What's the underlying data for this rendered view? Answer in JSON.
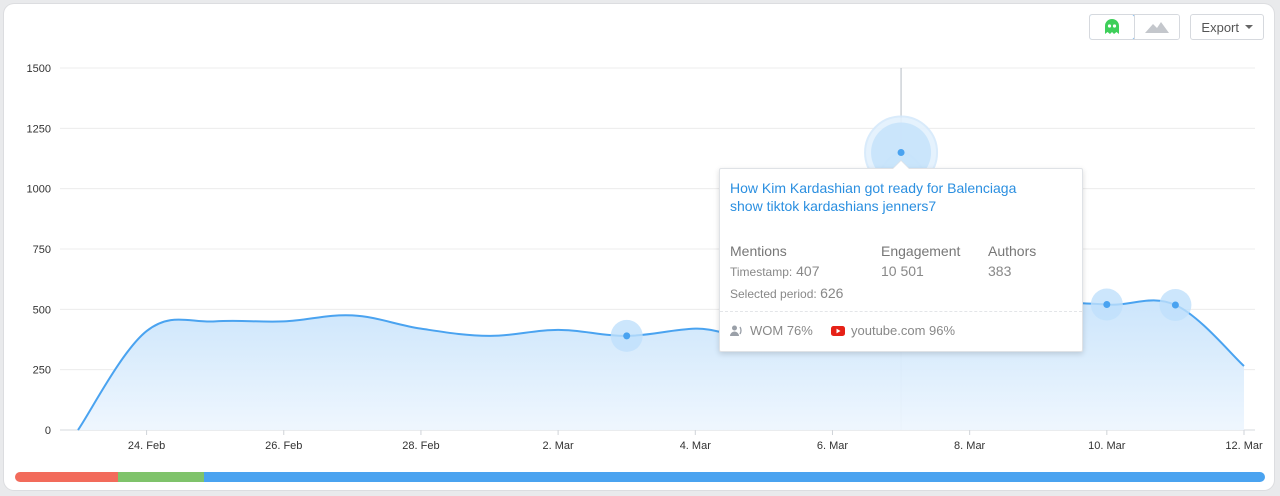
{
  "toolbar": {
    "toggle_left_icon": "ghost-icon",
    "toggle_right_icon": "mountain-icon",
    "export_label": "Export"
  },
  "colors": {
    "line": "#4aa3f0",
    "fill_top": "#9fcff8",
    "fill_bottom": "#eef6fe",
    "grid": "#ececec"
  },
  "chart_data": {
    "type": "area",
    "y_ticks": [
      "0",
      "250",
      "500",
      "750",
      "1000",
      "1250",
      "1500"
    ],
    "ylim": [
      0,
      1500
    ],
    "x_ticks": [
      "24. Feb",
      "26. Feb",
      "28. Feb",
      "2. Mar",
      "4. Mar",
      "6. Mar",
      "8. Mar",
      "10. Mar",
      "12. Mar"
    ],
    "x": [
      "23. Feb",
      "24. Feb",
      "25. Feb",
      "26. Feb",
      "27. Feb",
      "28. Feb",
      "1. Mar",
      "2. Mar",
      "3. Mar",
      "4. Mar",
      "5. Mar",
      "6. Mar",
      "7. Mar",
      "8. Mar",
      "9. Mar",
      "10. Mar",
      "11. Mar",
      "12. Mar"
    ],
    "values": [
      0,
      410,
      450,
      450,
      475,
      420,
      390,
      415,
      390,
      420,
      410,
      700,
      1150,
      740,
      560,
      520,
      518,
      265
    ],
    "highlighted_points": [
      "3. Mar",
      "10. Mar",
      "11. Mar"
    ],
    "selected_point": "7. Mar",
    "grid": true
  },
  "tooltip": {
    "title": "How Kim Kardashian got ready for Balenciaga show tiktok kardashians jenners7",
    "mentions_label": "Mentions",
    "timestamp_label": "Timestamp:",
    "timestamp_value": "407",
    "engagement_label": "Engagement",
    "engagement_value": "10 501",
    "authors_label": "Authors",
    "authors_value": "383",
    "selected_period_label": "Selected period:",
    "selected_period_value": "626",
    "wom_label": "WOM 76%",
    "source_label": "youtube.com 96%"
  },
  "timeline": [
    {
      "color": "#f26b5b",
      "fraction": 0.082
    },
    {
      "color": "#7fc36b",
      "fraction": 0.069
    },
    {
      "color": "#4aa3f0",
      "fraction": 0.849
    }
  ]
}
